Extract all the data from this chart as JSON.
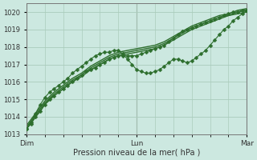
{
  "xlabel": "Pression niveau de la mer( hPa )",
  "bg_color": "#cce8e0",
  "grid_color": "#aaccbb",
  "line_color": "#2d6e2d",
  "marker_color": "#2d6e2d",
  "ylim": [
    1013.0,
    1020.5
  ],
  "xlim": [
    0,
    96
  ],
  "yticks": [
    1013,
    1014,
    1015,
    1016,
    1017,
    1018,
    1019,
    1020
  ],
  "day_labels": [
    "Dim",
    "Lun",
    "Mar"
  ],
  "day_positions": [
    0.0,
    48.0,
    96.0
  ],
  "series": [
    {
      "x": [
        0,
        2,
        4,
        6,
        8,
        10,
        12,
        14,
        16,
        18,
        20,
        22,
        24,
        26,
        28,
        30,
        32,
        34,
        36,
        38,
        40,
        42,
        44,
        46,
        48,
        50,
        52,
        54,
        56,
        58,
        60,
        62,
        64,
        66,
        68,
        70,
        72,
        74,
        76,
        78,
        80,
        82,
        84,
        86,
        88,
        90,
        92,
        94,
        96
      ],
      "y": [
        1013.3,
        1013.6,
        1014.0,
        1014.3,
        1014.7,
        1015.0,
        1015.2,
        1015.4,
        1015.6,
        1015.8,
        1016.0,
        1016.2,
        1016.4,
        1016.6,
        1016.7,
        1016.8,
        1017.0,
        1017.1,
        1017.3,
        1017.4,
        1017.5,
        1017.5,
        1017.5,
        1017.5,
        1017.5,
        1017.6,
        1017.7,
        1017.8,
        1017.9,
        1018.0,
        1018.1,
        1018.3,
        1018.5,
        1018.7,
        1018.9,
        1019.0,
        1019.1,
        1019.2,
        1019.3,
        1019.4,
        1019.5,
        1019.6,
        1019.7,
        1019.8,
        1019.9,
        1020.0,
        1020.0,
        1020.1,
        1020.1
      ],
      "marker": true,
      "smooth": false
    },
    {
      "x": [
        0,
        4,
        8,
        12,
        16,
        20,
        24,
        28,
        32,
        36,
        40,
        44,
        48,
        52,
        56,
        60,
        64,
        68,
        72,
        76,
        80,
        84,
        88,
        92,
        96
      ],
      "y": [
        1013.4,
        1014.1,
        1014.8,
        1015.3,
        1015.7,
        1016.1,
        1016.4,
        1016.8,
        1017.1,
        1017.4,
        1017.6,
        1017.7,
        1017.8,
        1017.9,
        1018.0,
        1018.2,
        1018.5,
        1018.8,
        1019.1,
        1019.3,
        1019.5,
        1019.7,
        1019.8,
        1020.0,
        1020.1
      ],
      "marker": false,
      "smooth": true
    },
    {
      "x": [
        0,
        4,
        8,
        12,
        16,
        20,
        24,
        28,
        32,
        36,
        40,
        44,
        48,
        52,
        56,
        60,
        64,
        68,
        72,
        76,
        80,
        84,
        88,
        92,
        96
      ],
      "y": [
        1013.5,
        1014.2,
        1014.9,
        1015.4,
        1015.8,
        1016.2,
        1016.5,
        1016.9,
        1017.2,
        1017.5,
        1017.7,
        1017.8,
        1017.9,
        1018.0,
        1018.1,
        1018.3,
        1018.6,
        1018.9,
        1019.2,
        1019.4,
        1019.6,
        1019.8,
        1019.9,
        1020.1,
        1020.2
      ],
      "marker": false,
      "smooth": true
    },
    {
      "x": [
        0,
        4,
        8,
        12,
        16,
        20,
        24,
        28,
        32,
        36,
        40,
        44,
        48,
        52,
        56,
        60,
        64,
        68,
        72,
        76,
        80,
        84,
        88,
        92,
        96
      ],
      "y": [
        1013.3,
        1014.0,
        1014.7,
        1015.2,
        1015.6,
        1016.0,
        1016.3,
        1016.7,
        1017.0,
        1017.3,
        1017.5,
        1017.6,
        1017.7,
        1017.8,
        1017.9,
        1018.1,
        1018.4,
        1018.7,
        1019.0,
        1019.2,
        1019.4,
        1019.6,
        1019.8,
        1019.9,
        1020.0
      ],
      "marker": false,
      "smooth": true
    },
    {
      "x": [
        0,
        2,
        4,
        6,
        8,
        10,
        12,
        14,
        16,
        18,
        20,
        22,
        24,
        26,
        28,
        30,
        32,
        34,
        36,
        38,
        40,
        42,
        44,
        46,
        48,
        50,
        52,
        54,
        56,
        58,
        60,
        62,
        64,
        66,
        68,
        70,
        72,
        74,
        76,
        78,
        80,
        82,
        84,
        86,
        88,
        90,
        92,
        94,
        96
      ],
      "y": [
        1013.3,
        1013.7,
        1014.2,
        1014.7,
        1015.1,
        1015.4,
        1015.6,
        1015.8,
        1016.0,
        1016.2,
        1016.5,
        1016.7,
        1016.9,
        1017.1,
        1017.3,
        1017.5,
        1017.6,
        1017.7,
        1017.7,
        1017.8,
        1017.8,
        1017.6,
        1017.3,
        1017.0,
        1016.7,
        1016.6,
        1016.5,
        1016.5,
        1016.6,
        1016.7,
        1016.9,
        1017.1,
        1017.3,
        1017.3,
        1017.2,
        1017.1,
        1017.2,
        1017.4,
        1017.6,
        1017.8,
        1018.1,
        1018.4,
        1018.7,
        1019.0,
        1019.2,
        1019.5,
        1019.7,
        1019.9,
        1020.1
      ],
      "marker": true,
      "smooth": false
    }
  ]
}
